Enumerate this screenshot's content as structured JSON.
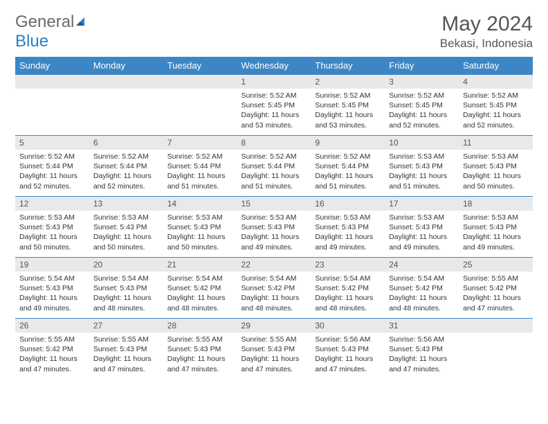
{
  "brand": {
    "name_a": "General",
    "name_b": "Blue"
  },
  "title": "May 2024",
  "location": "Bekasi, Indonesia",
  "header_color": "#3d86c6",
  "header_text_color": "#ffffff",
  "daynum_bg": "#e9e9e9",
  "border_color": "#3d86c6",
  "text_color": "#333333",
  "days_of_week": [
    "Sunday",
    "Monday",
    "Tuesday",
    "Wednesday",
    "Thursday",
    "Friday",
    "Saturday"
  ],
  "weeks": [
    [
      null,
      null,
      null,
      {
        "n": "1",
        "sunrise": "5:52 AM",
        "sunset": "5:45 PM",
        "daylight": "11 hours and 53 minutes."
      },
      {
        "n": "2",
        "sunrise": "5:52 AM",
        "sunset": "5:45 PM",
        "daylight": "11 hours and 53 minutes."
      },
      {
        "n": "3",
        "sunrise": "5:52 AM",
        "sunset": "5:45 PM",
        "daylight": "11 hours and 52 minutes."
      },
      {
        "n": "4",
        "sunrise": "5:52 AM",
        "sunset": "5:45 PM",
        "daylight": "11 hours and 52 minutes."
      }
    ],
    [
      {
        "n": "5",
        "sunrise": "5:52 AM",
        "sunset": "5:44 PM",
        "daylight": "11 hours and 52 minutes."
      },
      {
        "n": "6",
        "sunrise": "5:52 AM",
        "sunset": "5:44 PM",
        "daylight": "11 hours and 52 minutes."
      },
      {
        "n": "7",
        "sunrise": "5:52 AM",
        "sunset": "5:44 PM",
        "daylight": "11 hours and 51 minutes."
      },
      {
        "n": "8",
        "sunrise": "5:52 AM",
        "sunset": "5:44 PM",
        "daylight": "11 hours and 51 minutes."
      },
      {
        "n": "9",
        "sunrise": "5:52 AM",
        "sunset": "5:44 PM",
        "daylight": "11 hours and 51 minutes."
      },
      {
        "n": "10",
        "sunrise": "5:53 AM",
        "sunset": "5:43 PM",
        "daylight": "11 hours and 51 minutes."
      },
      {
        "n": "11",
        "sunrise": "5:53 AM",
        "sunset": "5:43 PM",
        "daylight": "11 hours and 50 minutes."
      }
    ],
    [
      {
        "n": "12",
        "sunrise": "5:53 AM",
        "sunset": "5:43 PM",
        "daylight": "11 hours and 50 minutes."
      },
      {
        "n": "13",
        "sunrise": "5:53 AM",
        "sunset": "5:43 PM",
        "daylight": "11 hours and 50 minutes."
      },
      {
        "n": "14",
        "sunrise": "5:53 AM",
        "sunset": "5:43 PM",
        "daylight": "11 hours and 50 minutes."
      },
      {
        "n": "15",
        "sunrise": "5:53 AM",
        "sunset": "5:43 PM",
        "daylight": "11 hours and 49 minutes."
      },
      {
        "n": "16",
        "sunrise": "5:53 AM",
        "sunset": "5:43 PM",
        "daylight": "11 hours and 49 minutes."
      },
      {
        "n": "17",
        "sunrise": "5:53 AM",
        "sunset": "5:43 PM",
        "daylight": "11 hours and 49 minutes."
      },
      {
        "n": "18",
        "sunrise": "5:53 AM",
        "sunset": "5:43 PM",
        "daylight": "11 hours and 49 minutes."
      }
    ],
    [
      {
        "n": "19",
        "sunrise": "5:54 AM",
        "sunset": "5:43 PM",
        "daylight": "11 hours and 49 minutes."
      },
      {
        "n": "20",
        "sunrise": "5:54 AM",
        "sunset": "5:43 PM",
        "daylight": "11 hours and 48 minutes."
      },
      {
        "n": "21",
        "sunrise": "5:54 AM",
        "sunset": "5:42 PM",
        "daylight": "11 hours and 48 minutes."
      },
      {
        "n": "22",
        "sunrise": "5:54 AM",
        "sunset": "5:42 PM",
        "daylight": "11 hours and 48 minutes."
      },
      {
        "n": "23",
        "sunrise": "5:54 AM",
        "sunset": "5:42 PM",
        "daylight": "11 hours and 48 minutes."
      },
      {
        "n": "24",
        "sunrise": "5:54 AM",
        "sunset": "5:42 PM",
        "daylight": "11 hours and 48 minutes."
      },
      {
        "n": "25",
        "sunrise": "5:55 AM",
        "sunset": "5:42 PM",
        "daylight": "11 hours and 47 minutes."
      }
    ],
    [
      {
        "n": "26",
        "sunrise": "5:55 AM",
        "sunset": "5:42 PM",
        "daylight": "11 hours and 47 minutes."
      },
      {
        "n": "27",
        "sunrise": "5:55 AM",
        "sunset": "5:43 PM",
        "daylight": "11 hours and 47 minutes."
      },
      {
        "n": "28",
        "sunrise": "5:55 AM",
        "sunset": "5:43 PM",
        "daylight": "11 hours and 47 minutes."
      },
      {
        "n": "29",
        "sunrise": "5:55 AM",
        "sunset": "5:43 PM",
        "daylight": "11 hours and 47 minutes."
      },
      {
        "n": "30",
        "sunrise": "5:56 AM",
        "sunset": "5:43 PM",
        "daylight": "11 hours and 47 minutes."
      },
      {
        "n": "31",
        "sunrise": "5:56 AM",
        "sunset": "5:43 PM",
        "daylight": "11 hours and 47 minutes."
      },
      null
    ]
  ],
  "labels": {
    "sunrise": "Sunrise:",
    "sunset": "Sunset:",
    "daylight": "Daylight:"
  }
}
